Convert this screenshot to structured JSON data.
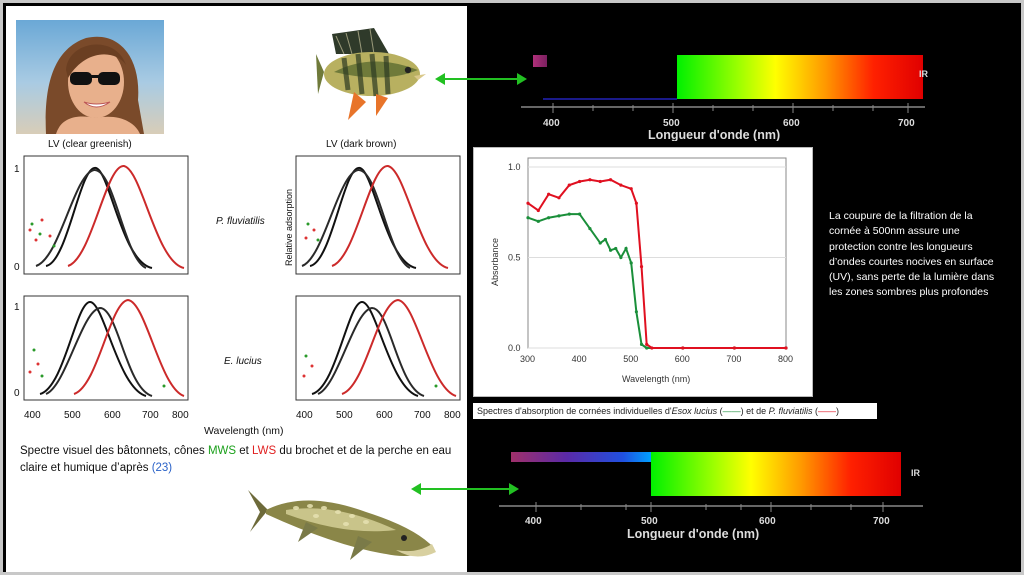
{
  "left": {
    "label_clear": "LV (clear greenish)",
    "label_dark": "LV (dark brown)",
    "species_perch": "P. fluviatilis",
    "species_pike": "E. lucius",
    "ylabel_relative": "Relative adsorption",
    "xlabel": "Wavelength (nm)",
    "y_tick_1": "1",
    "y_tick_0": "0",
    "x_ticks": [
      "400",
      "500",
      "600",
      "700",
      "800"
    ]
  },
  "caption_bottom": {
    "text_a": "Spectre visuel des bâtonnets, cônes ",
    "mws": "MWS",
    "text_b": " et ",
    "lws": "LWS",
    "text_c": " du brochet et de la perche en eau claire et humique d’après ",
    "ref": "(23)"
  },
  "spectrum": {
    "axis_title": "Longueur d'onde (nm)",
    "ir_label": "IR",
    "ticks": [
      "400",
      "500",
      "600",
      "700"
    ]
  },
  "absorbance": {
    "ylabel": "Absorbance",
    "xlabel": "Wavelength (nm)",
    "y_ticks": [
      "1.0",
      "0.5",
      "0.0"
    ],
    "x_ticks": [
      "300",
      "400",
      "500",
      "600",
      "700",
      "800"
    ],
    "caption_prefix": "Spectres d'absorption de cornées individuelles d'",
    "caption_esox": "Esox lucius",
    "caption_mid": " (",
    "caption_mid2": ") et de ",
    "caption_perch": "P. fluviatilis",
    "caption_end": " (",
    "caption_close": ")"
  },
  "right_note": {
    "text": "La coupure de la filtration de la cornée à 500nm assure une  protection contre les longueurs d’ondes courtes nocives en surface (UV), sans perte de la lumière dans les zones sombres plus profondes"
  },
  "colors": {
    "arrow": "#22c022",
    "green_series": "#1a8f3a",
    "red_series": "#e01020"
  },
  "chart_data": [
    {
      "type": "line",
      "ylabel": "Absorbance",
      "xlabel": "Wavelength (nm)",
      "xlim": [
        300,
        800
      ],
      "ylim": [
        0,
        1.05
      ],
      "series": [
        {
          "name": "Esox lucius",
          "color": "#1a8f3a",
          "x": [
            300,
            320,
            340,
            360,
            380,
            400,
            420,
            440,
            450,
            460,
            470,
            480,
            490,
            500,
            510,
            520,
            530,
            600,
            700,
            800
          ],
          "y": [
            0.72,
            0.7,
            0.72,
            0.73,
            0.74,
            0.74,
            0.66,
            0.58,
            0.6,
            0.54,
            0.55,
            0.5,
            0.55,
            0.47,
            0.2,
            0.02,
            0.0,
            0.0,
            0.0,
            0.0
          ]
        },
        {
          "name": "P. fluviatilis",
          "color": "#e01020",
          "x": [
            300,
            320,
            340,
            360,
            380,
            400,
            420,
            440,
            460,
            480,
            500,
            510,
            520,
            530,
            540,
            600,
            700,
            800
          ],
          "y": [
            0.8,
            0.76,
            0.85,
            0.83,
            0.9,
            0.92,
            0.93,
            0.92,
            0.93,
            0.9,
            0.88,
            0.8,
            0.45,
            0.02,
            0.0,
            0.0,
            0.0,
            0.0
          ]
        }
      ]
    }
  ]
}
